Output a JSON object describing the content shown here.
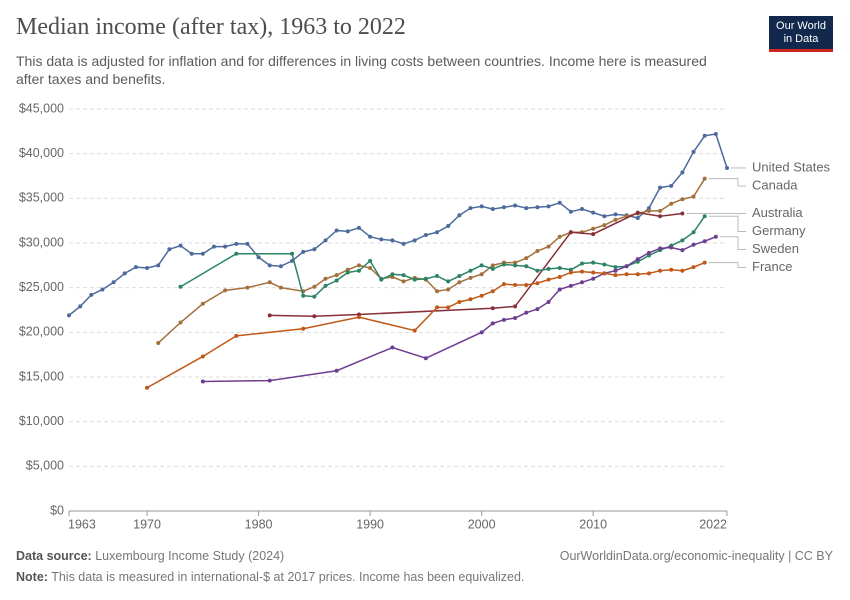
{
  "header": {
    "title": "Median income (after tax), 1963 to 2022",
    "subtitle": "This data is adjusted for inflation and for differences in living costs between countries. Income here is measured after taxes and benefits.",
    "logo": [
      "Our World",
      "in Data"
    ]
  },
  "chart_data": {
    "type": "line",
    "xlim": [
      1963,
      2022
    ],
    "xticks": [
      1963,
      1970,
      1980,
      1990,
      2000,
      2010,
      2022
    ],
    "ylim": [
      0,
      45000
    ],
    "yticks": [
      {
        "value": 0,
        "label": "$0"
      },
      {
        "value": 5000,
        "label": "$5,000"
      },
      {
        "value": 10000,
        "label": "$10,000"
      },
      {
        "value": 15000,
        "label": "$15,000"
      },
      {
        "value": 20000,
        "label": "$20,000"
      },
      {
        "value": 25000,
        "label": "$25,000"
      },
      {
        "value": 30000,
        "label": "$30,000"
      },
      {
        "value": 35000,
        "label": "$35,000"
      },
      {
        "value": 40000,
        "label": "$40,000"
      },
      {
        "value": 45000,
        "label": "$45,000"
      }
    ],
    "grid": true,
    "series": [
      {
        "name": "United States",
        "color": "#4c6a9c",
        "x": [
          1963,
          1964,
          1965,
          1966,
          1967,
          1968,
          1969,
          1970,
          1971,
          1972,
          1973,
          1974,
          1975,
          1976,
          1977,
          1978,
          1979,
          1980,
          1981,
          1982,
          1983,
          1984,
          1985,
          1986,
          1987,
          1988,
          1989,
          1990,
          1991,
          1992,
          1993,
          1994,
          1995,
          1996,
          1997,
          1998,
          1999,
          2000,
          2001,
          2002,
          2003,
          2004,
          2005,
          2006,
          2007,
          2008,
          2009,
          2010,
          2011,
          2012,
          2013,
          2014,
          2015,
          2016,
          2017,
          2018,
          2019,
          2020,
          2021,
          2022
        ],
        "values": [
          21900,
          22900,
          24200,
          24800,
          25600,
          26600,
          27300,
          27200,
          27500,
          29300,
          29700,
          28800,
          28800,
          29600,
          29600,
          29900,
          29900,
          28400,
          27500,
          27400,
          28000,
          29000,
          29300,
          30300,
          31400,
          31300,
          31700,
          30700,
          30400,
          30300,
          29900,
          30300,
          30900,
          31200,
          31900,
          33100,
          33900,
          34100,
          33800,
          34000,
          34200,
          33900,
          34000,
          34100,
          34500,
          33500,
          33800,
          33400,
          33000,
          33200,
          33100,
          32800,
          33900,
          36200,
          36400,
          37900,
          40200,
          42000,
          42200,
          38400
        ]
      },
      {
        "name": "Canada",
        "color": "#a2703c",
        "x": [
          1971,
          1973,
          1975,
          1977,
          1979,
          1981,
          1982,
          1984,
          1985,
          1986,
          1987,
          1988,
          1989,
          1990,
          1991,
          1992,
          1993,
          1994,
          1995,
          1996,
          1997,
          1998,
          1999,
          2000,
          2001,
          2002,
          2003,
          2004,
          2005,
          2006,
          2007,
          2008,
          2009,
          2010,
          2011,
          2012,
          2013,
          2014,
          2015,
          2016,
          2017,
          2018,
          2019,
          2020
        ],
        "values": [
          18800,
          21100,
          23200,
          24700,
          25000,
          25600,
          25000,
          24600,
          25100,
          26000,
          26400,
          27000,
          27500,
          27200,
          26000,
          26200,
          25700,
          26100,
          25900,
          24600,
          24800,
          25600,
          26100,
          26500,
          27500,
          27800,
          27800,
          28300,
          29100,
          29600,
          30700,
          31200,
          31200,
          31600,
          32000,
          32600,
          33000,
          33300,
          33600,
          33600,
          34400,
          34900,
          35200,
          37200
        ]
      },
      {
        "name": "Australia",
        "color": "#883039",
        "x": [
          1981,
          1985,
          1989,
          2001,
          2003,
          2008,
          2010,
          2014,
          2016,
          2018
        ],
        "values": [
          21900,
          21800,
          22000,
          22700,
          22900,
          31200,
          31000,
          33400,
          33000,
          33300
        ]
      },
      {
        "name": "Germany",
        "color": "#2c8465",
        "x": [
          1973,
          1978,
          1983,
          1984,
          1985,
          1986,
          1987,
          1988,
          1989,
          1990,
          1991,
          1992,
          1993,
          1994,
          1995,
          1996,
          1997,
          1998,
          1999,
          2000,
          2001,
          2002,
          2003,
          2004,
          2005,
          2006,
          2007,
          2008,
          2009,
          2010,
          2011,
          2012,
          2013,
          2014,
          2015,
          2016,
          2017,
          2018,
          2019,
          2020
        ],
        "values": [
          25100,
          28800,
          28800,
          24100,
          24000,
          25200,
          25800,
          26700,
          26900,
          28000,
          25900,
          26500,
          26400,
          25900,
          26000,
          26300,
          25700,
          26300,
          26900,
          27500,
          27100,
          27600,
          27500,
          27400,
          26900,
          27100,
          27200,
          27000,
          27700,
          27800,
          27600,
          27300,
          27400,
          27900,
          28600,
          29200,
          29700,
          30300,
          31200,
          33000
        ]
      },
      {
        "name": "Sweden",
        "color": "#6d3e91",
        "x": [
          1975,
          1981,
          1987,
          1992,
          1995,
          2000,
          2001,
          2002,
          2003,
          2004,
          2005,
          2006,
          2007,
          2008,
          2009,
          2010,
          2011,
          2012,
          2013,
          2014,
          2015,
          2016,
          2017,
          2018,
          2019,
          2020,
          2021
        ],
        "values": [
          14500,
          14600,
          15700,
          18300,
          17100,
          20000,
          21000,
          21400,
          21600,
          22200,
          22600,
          23400,
          24800,
          25200,
          25600,
          26000,
          26600,
          26900,
          27400,
          28200,
          28900,
          29400,
          29500,
          29200,
          29800,
          30200,
          30700
        ]
      },
      {
        "name": "France",
        "color": "#c05917",
        "x": [
          1970,
          1975,
          1978,
          1984,
          1989,
          1994,
          1996,
          1997,
          1998,
          1999,
          2000,
          2001,
          2002,
          2003,
          2004,
          2005,
          2006,
          2007,
          2008,
          2009,
          2010,
          2011,
          2012,
          2013,
          2014,
          2015,
          2016,
          2017,
          2018,
          2019,
          2020
        ],
        "values": [
          13800,
          17300,
          19600,
          20400,
          21700,
          20200,
          22800,
          22800,
          23400,
          23700,
          24100,
          24600,
          25400,
          25300,
          25300,
          25500,
          25900,
          26200,
          26700,
          26800,
          26700,
          26600,
          26400,
          26500,
          26500,
          26600,
          26900,
          27000,
          26900,
          27300,
          27800
        ]
      }
    ]
  },
  "footer": {
    "source_label": "Data source:",
    "source": "Luxembourg Income Study (2024)",
    "url": "OurWorldinData.org/economic-inequality | CC BY",
    "note_label": "Note:",
    "note": "This data is measured in international-$ at 2017 prices. Income has been equivalized."
  }
}
